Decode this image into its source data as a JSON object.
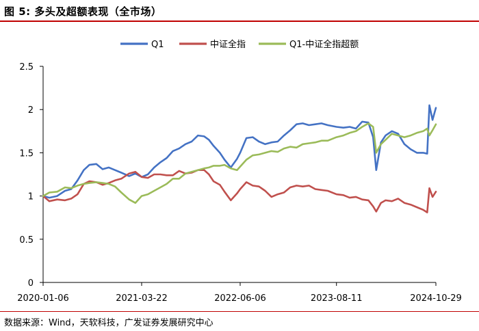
{
  "header": {
    "figure_label": "图 5:",
    "title": "多头及超额表现（全市场）"
  },
  "footer": {
    "source": "数据来源：Wind，天软科技，广发证券发展研究中心"
  },
  "chart_data": {
    "type": "line",
    "title": "",
    "xlabel": "",
    "ylabel": "",
    "ylim": [
      0,
      2.5
    ],
    "yticks": [
      "0",
      "0.5",
      "1",
      "1.5",
      "2",
      "2.5"
    ],
    "xticks": [
      "2020-01-06",
      "2021-03-22",
      "2022-06-06",
      "2023-08-11",
      "2024-10-29"
    ],
    "xlim": [
      "2020-01-06",
      "2024-10-29"
    ],
    "grid": false,
    "legend_position": "top",
    "series": [
      {
        "name": "Q1",
        "color": "#4472c4",
        "points": [
          [
            "2020-01-06",
            1.0
          ],
          [
            "2020-02-03",
            0.98
          ],
          [
            "2020-03-09",
            1.0
          ],
          [
            "2020-04-13",
            1.06
          ],
          [
            "2020-05-11",
            1.08
          ],
          [
            "2020-06-08",
            1.18
          ],
          [
            "2020-07-06",
            1.3
          ],
          [
            "2020-07-31",
            1.36
          ],
          [
            "2020-08-31",
            1.37
          ],
          [
            "2020-09-28",
            1.31
          ],
          [
            "2020-10-26",
            1.33
          ],
          [
            "2020-11-23",
            1.3
          ],
          [
            "2020-12-21",
            1.27
          ],
          [
            "2021-01-25",
            1.23
          ],
          [
            "2021-02-22",
            1.26
          ],
          [
            "2021-03-22",
            1.22
          ],
          [
            "2021-04-19",
            1.25
          ],
          [
            "2021-05-17",
            1.33
          ],
          [
            "2021-06-14",
            1.39
          ],
          [
            "2021-07-12",
            1.44
          ],
          [
            "2021-08-09",
            1.52
          ],
          [
            "2021-09-06",
            1.55
          ],
          [
            "2021-10-04",
            1.6
          ],
          [
            "2021-11-01",
            1.63
          ],
          [
            "2021-11-29",
            1.7
          ],
          [
            "2021-12-27",
            1.69
          ],
          [
            "2022-01-17",
            1.65
          ],
          [
            "2022-02-07",
            1.58
          ],
          [
            "2022-03-07",
            1.5
          ],
          [
            "2022-03-28",
            1.42
          ],
          [
            "2022-04-25",
            1.33
          ],
          [
            "2022-05-23",
            1.43
          ],
          [
            "2022-06-06",
            1.5
          ],
          [
            "2022-07-04",
            1.67
          ],
          [
            "2022-08-01",
            1.68
          ],
          [
            "2022-08-29",
            1.63
          ],
          [
            "2022-09-26",
            1.6
          ],
          [
            "2022-10-24",
            1.62
          ],
          [
            "2022-11-21",
            1.63
          ],
          [
            "2022-12-19",
            1.7
          ],
          [
            "2023-01-16",
            1.76
          ],
          [
            "2023-02-13",
            1.83
          ],
          [
            "2023-03-13",
            1.84
          ],
          [
            "2023-04-10",
            1.82
          ],
          [
            "2023-05-08",
            1.83
          ],
          [
            "2023-06-05",
            1.84
          ],
          [
            "2023-07-03",
            1.82
          ],
          [
            "2023-08-11",
            1.8
          ],
          [
            "2023-09-11",
            1.79
          ],
          [
            "2023-10-09",
            1.8
          ],
          [
            "2023-11-06",
            1.78
          ],
          [
            "2023-12-04",
            1.86
          ],
          [
            "2024-01-01",
            1.85
          ],
          [
            "2024-01-22",
            1.68
          ],
          [
            "2024-02-05",
            1.3
          ],
          [
            "2024-02-26",
            1.62
          ],
          [
            "2024-03-18",
            1.7
          ],
          [
            "2024-04-15",
            1.75
          ],
          [
            "2024-05-13",
            1.72
          ],
          [
            "2024-06-10",
            1.6
          ],
          [
            "2024-07-08",
            1.54
          ],
          [
            "2024-08-05",
            1.5
          ],
          [
            "2024-09-02",
            1.5
          ],
          [
            "2024-09-20",
            1.49
          ],
          [
            "2024-09-30",
            2.05
          ],
          [
            "2024-10-14",
            1.88
          ],
          [
            "2024-10-29",
            2.02
          ]
        ]
      },
      {
        "name": "中证全指",
        "color": "#c0504d",
        "points": [
          [
            "2020-01-06",
            1.0
          ],
          [
            "2020-02-03",
            0.94
          ],
          [
            "2020-03-09",
            0.96
          ],
          [
            "2020-04-13",
            0.95
          ],
          [
            "2020-05-11",
            0.97
          ],
          [
            "2020-06-08",
            1.02
          ],
          [
            "2020-07-06",
            1.14
          ],
          [
            "2020-07-31",
            1.17
          ],
          [
            "2020-08-31",
            1.16
          ],
          [
            "2020-09-28",
            1.13
          ],
          [
            "2020-10-26",
            1.15
          ],
          [
            "2020-11-23",
            1.18
          ],
          [
            "2020-12-21",
            1.2
          ],
          [
            "2021-01-25",
            1.26
          ],
          [
            "2021-02-22",
            1.28
          ],
          [
            "2021-03-22",
            1.22
          ],
          [
            "2021-04-19",
            1.21
          ],
          [
            "2021-05-17",
            1.25
          ],
          [
            "2021-06-14",
            1.25
          ],
          [
            "2021-07-12",
            1.24
          ],
          [
            "2021-08-09",
            1.24
          ],
          [
            "2021-09-06",
            1.29
          ],
          [
            "2021-10-04",
            1.26
          ],
          [
            "2021-11-01",
            1.27
          ],
          [
            "2021-11-29",
            1.3
          ],
          [
            "2021-12-27",
            1.3
          ],
          [
            "2022-01-17",
            1.25
          ],
          [
            "2022-02-07",
            1.17
          ],
          [
            "2022-03-07",
            1.13
          ],
          [
            "2022-03-28",
            1.05
          ],
          [
            "2022-04-25",
            0.95
          ],
          [
            "2022-05-23",
            1.03
          ],
          [
            "2022-06-06",
            1.08
          ],
          [
            "2022-07-04",
            1.16
          ],
          [
            "2022-08-01",
            1.12
          ],
          [
            "2022-08-29",
            1.11
          ],
          [
            "2022-09-26",
            1.06
          ],
          [
            "2022-10-24",
            0.99
          ],
          [
            "2022-11-21",
            1.02
          ],
          [
            "2022-12-19",
            1.04
          ],
          [
            "2023-01-16",
            1.1
          ],
          [
            "2023-02-13",
            1.12
          ],
          [
            "2023-03-13",
            1.11
          ],
          [
            "2023-04-10",
            1.12
          ],
          [
            "2023-05-08",
            1.08
          ],
          [
            "2023-06-05",
            1.07
          ],
          [
            "2023-07-03",
            1.06
          ],
          [
            "2023-08-11",
            1.02
          ],
          [
            "2023-09-11",
            1.01
          ],
          [
            "2023-10-09",
            0.98
          ],
          [
            "2023-11-06",
            0.99
          ],
          [
            "2023-12-04",
            0.96
          ],
          [
            "2024-01-01",
            0.95
          ],
          [
            "2024-01-22",
            0.88
          ],
          [
            "2024-02-05",
            0.82
          ],
          [
            "2024-02-26",
            0.92
          ],
          [
            "2024-03-18",
            0.95
          ],
          [
            "2024-04-15",
            0.94
          ],
          [
            "2024-05-13",
            0.97
          ],
          [
            "2024-06-10",
            0.92
          ],
          [
            "2024-07-08",
            0.9
          ],
          [
            "2024-08-05",
            0.87
          ],
          [
            "2024-09-02",
            0.84
          ],
          [
            "2024-09-20",
            0.81
          ],
          [
            "2024-09-30",
            1.09
          ],
          [
            "2024-10-14",
            0.99
          ],
          [
            "2024-10-29",
            1.05
          ]
        ]
      },
      {
        "name": "Q1-中证全指超额",
        "color": "#9bbb59",
        "points": [
          [
            "2020-01-06",
            1.0
          ],
          [
            "2020-02-03",
            1.04
          ],
          [
            "2020-03-09",
            1.05
          ],
          [
            "2020-04-13",
            1.1
          ],
          [
            "2020-05-11",
            1.09
          ],
          [
            "2020-06-08",
            1.12
          ],
          [
            "2020-07-06",
            1.14
          ],
          [
            "2020-07-31",
            1.15
          ],
          [
            "2020-08-31",
            1.16
          ],
          [
            "2020-09-28",
            1.15
          ],
          [
            "2020-10-26",
            1.14
          ],
          [
            "2020-11-23",
            1.11
          ],
          [
            "2020-12-21",
            1.04
          ],
          [
            "2021-01-25",
            0.96
          ],
          [
            "2021-02-22",
            0.92
          ],
          [
            "2021-03-22",
            1.0
          ],
          [
            "2021-04-19",
            1.02
          ],
          [
            "2021-05-17",
            1.06
          ],
          [
            "2021-06-14",
            1.1
          ],
          [
            "2021-07-12",
            1.14
          ],
          [
            "2021-08-09",
            1.2
          ],
          [
            "2021-09-06",
            1.2
          ],
          [
            "2021-10-04",
            1.26
          ],
          [
            "2021-11-01",
            1.28
          ],
          [
            "2021-11-29",
            1.3
          ],
          [
            "2021-12-27",
            1.32
          ],
          [
            "2022-01-17",
            1.33
          ],
          [
            "2022-02-07",
            1.35
          ],
          [
            "2022-03-07",
            1.35
          ],
          [
            "2022-03-28",
            1.36
          ],
          [
            "2022-04-25",
            1.32
          ],
          [
            "2022-05-23",
            1.3
          ],
          [
            "2022-06-06",
            1.34
          ],
          [
            "2022-07-04",
            1.42
          ],
          [
            "2022-08-01",
            1.47
          ],
          [
            "2022-08-29",
            1.48
          ],
          [
            "2022-09-26",
            1.5
          ],
          [
            "2022-10-24",
            1.52
          ],
          [
            "2022-11-21",
            1.51
          ],
          [
            "2022-12-19",
            1.55
          ],
          [
            "2023-01-16",
            1.57
          ],
          [
            "2023-02-13",
            1.56
          ],
          [
            "2023-03-13",
            1.6
          ],
          [
            "2023-04-10",
            1.61
          ],
          [
            "2023-05-08",
            1.62
          ],
          [
            "2023-06-05",
            1.64
          ],
          [
            "2023-07-03",
            1.64
          ],
          [
            "2023-08-11",
            1.68
          ],
          [
            "2023-09-11",
            1.7
          ],
          [
            "2023-10-09",
            1.73
          ],
          [
            "2023-11-06",
            1.75
          ],
          [
            "2023-12-04",
            1.8
          ],
          [
            "2024-01-01",
            1.84
          ],
          [
            "2024-01-22",
            1.8
          ],
          [
            "2024-02-05",
            1.5
          ],
          [
            "2024-02-26",
            1.6
          ],
          [
            "2024-03-18",
            1.65
          ],
          [
            "2024-04-15",
            1.72
          ],
          [
            "2024-05-13",
            1.7
          ],
          [
            "2024-06-10",
            1.68
          ],
          [
            "2024-07-08",
            1.7
          ],
          [
            "2024-08-05",
            1.73
          ],
          [
            "2024-09-02",
            1.75
          ],
          [
            "2024-09-20",
            1.78
          ],
          [
            "2024-09-30",
            1.7
          ],
          [
            "2024-10-14",
            1.76
          ],
          [
            "2024-10-29",
            1.83
          ]
        ]
      }
    ]
  }
}
